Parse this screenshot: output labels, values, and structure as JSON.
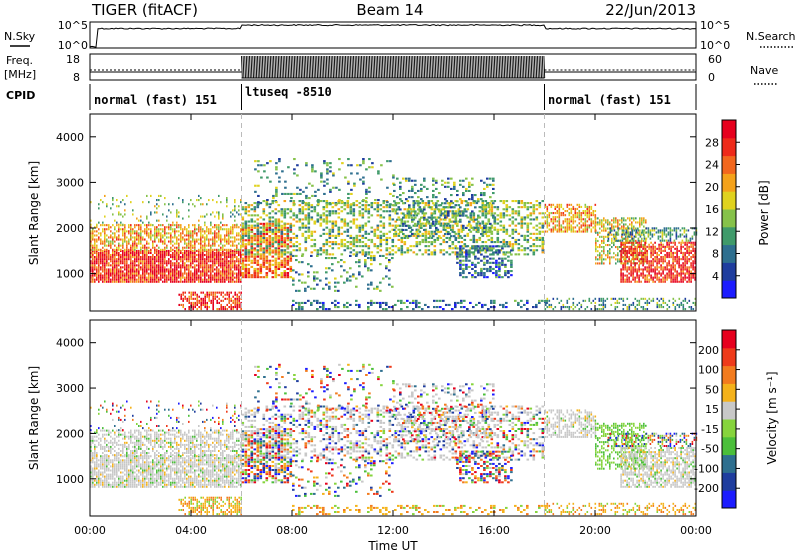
{
  "header": {
    "radar": "TIGER (fitACF)",
    "beam": "Beam 14",
    "date": "22/Jun/2013"
  },
  "summary_panels": {
    "nsky_label": "N.Sky",
    "nsky_ticks": [
      "10^5",
      "10^0"
    ],
    "nsearch_label": "N.Search",
    "freq_label": "Freq.",
    "freq_unit": "[MHz]",
    "freq_ticks": [
      "18",
      "8"
    ],
    "nave_label": "Nave",
    "nave_ticks": [
      "60",
      "0"
    ],
    "cpid_label": "CPID",
    "cpid_segments": [
      {
        "start_hour": 0,
        "end_hour": 6,
        "label": "normal (fast) 151"
      },
      {
        "start_hour": 6,
        "end_hour": 18,
        "label": "ltuseq -8510"
      },
      {
        "start_hour": 18,
        "end_hour": 24,
        "label": "normal (fast) 151"
      }
    ]
  },
  "chart_data": [
    {
      "type": "heatmap",
      "name": "power",
      "ylabel": "Slant Range [km]",
      "ylim": [
        180,
        4500
      ],
      "xlim": [
        0,
        24
      ],
      "yticks": [
        "1000",
        "2000",
        "3000",
        "4000"
      ],
      "colorbar_label": "Power [dB]",
      "colorbar_ticks": [
        "4",
        "8",
        "12",
        "16",
        "20",
        "24",
        "28"
      ],
      "colorbar_colors": [
        "#1c1cff",
        "#1f3d9e",
        "#2e6f8f",
        "#3f9a6a",
        "#86c24a",
        "#e0d21e",
        "#f4a21b",
        "#f2671e",
        "#ee2a1a",
        "#e6001e"
      ]
    },
    {
      "type": "heatmap",
      "name": "velocity",
      "ylabel": "Slant Range [km]",
      "xlabel": "Time UT",
      "ylim": [
        180,
        4500
      ],
      "xlim": [
        0,
        24
      ],
      "yticks": [
        "1000",
        "2000",
        "3000",
        "4000"
      ],
      "xticks": [
        "00:00",
        "04:00",
        "08:00",
        "12:00",
        "16:00",
        "20:00",
        "00:00"
      ],
      "colorbar_label": "Velocity [m s⁻¹]",
      "colorbar_ticks": [
        "200",
        "100",
        "50",
        "15",
        "-15",
        "-50",
        "-100",
        "-200"
      ],
      "colorbar_colors": [
        "#1c1cff",
        "#1f3d9e",
        "#2e6f8f",
        "#4bbf3a",
        "#86d43c",
        "#c8c8c8",
        "#f4b21b",
        "#f27b1e",
        "#ee3a1a",
        "#e6001e"
      ]
    }
  ]
}
